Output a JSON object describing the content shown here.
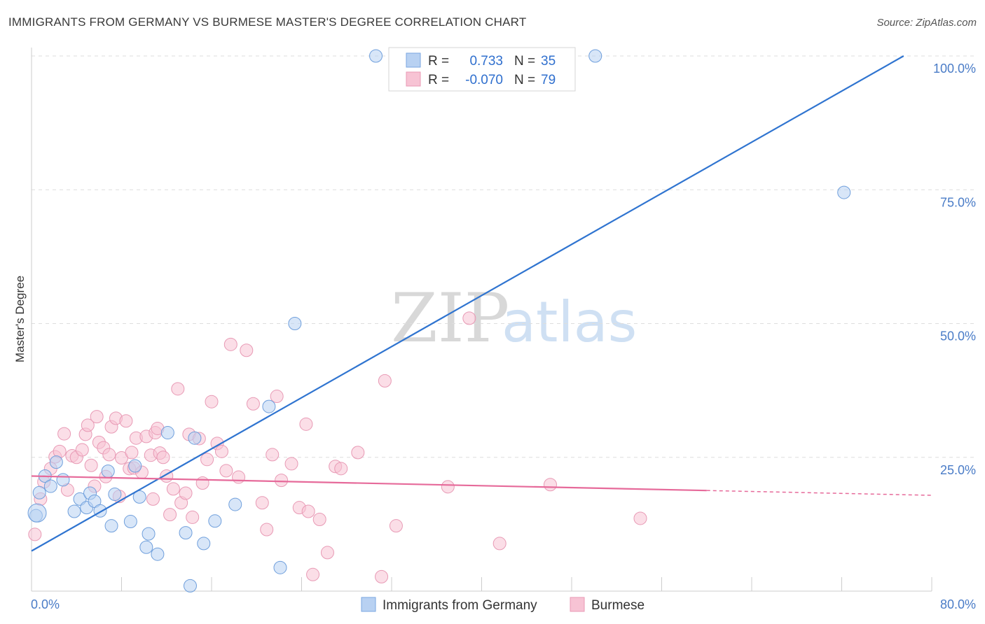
{
  "header": {
    "title": "IMMIGRANTS FROM GERMANY VS BURMESE MASTER'S DEGREE CORRELATION CHART",
    "source": "Source: ZipAtlas.com"
  },
  "watermark": {
    "part1": "ZIP",
    "part2": "atlas"
  },
  "colors": {
    "blue": "#2f74d0",
    "pink": "#e66a9a",
    "blue_fill": "#b8d1f2",
    "pink_fill": "#f7c3d4"
  },
  "legend": {
    "rows": [
      {
        "r_label": "R =",
        "r_value": "0.733",
        "n_label": "N =",
        "n_value": "35"
      },
      {
        "r_label": "R =",
        "r_value": "-0.070",
        "n_label": "N =",
        "n_value": "79"
      }
    ]
  },
  "bottom_legend": {
    "series1": "Immigrants from Germany",
    "series2": "Burmese"
  },
  "chart_data": {
    "type": "scatter",
    "title": "IMMIGRANTS FROM GERMANY VS BURMESE MASTER'S DEGREE CORRELATION CHART",
    "xlabel": "",
    "ylabel": "Master's Degree",
    "xlim": [
      0,
      80
    ],
    "ylim": [
      0,
      100
    ],
    "x_tick_labels": [
      "0.0%",
      "80.0%"
    ],
    "y_tick_labels": [
      "25.0%",
      "50.0%",
      "75.0%",
      "100.0%"
    ],
    "y_tick_values": [
      25,
      50,
      75,
      100
    ],
    "series": [
      {
        "name": "Immigrants from Germany",
        "r": 0.733,
        "n": 35,
        "trend": {
          "x": [
            0,
            77.5
          ],
          "y": [
            7.5,
            100
          ]
        },
        "points": [
          [
            0.4,
            14.1
          ],
          [
            0.7,
            18.4
          ],
          [
            1.2,
            21.5
          ],
          [
            1.7,
            19.6
          ],
          [
            2.2,
            24.1
          ],
          [
            2.8,
            20.8
          ],
          [
            3.8,
            14.9
          ],
          [
            4.3,
            17.2
          ],
          [
            4.9,
            15.6
          ],
          [
            5.2,
            18.3
          ],
          [
            5.6,
            16.8
          ],
          [
            6.1,
            15.0
          ],
          [
            6.8,
            22.4
          ],
          [
            7.1,
            12.2
          ],
          [
            7.4,
            18.1
          ],
          [
            8.8,
            13.0
          ],
          [
            9.2,
            23.4
          ],
          [
            9.6,
            17.6
          ],
          [
            10.2,
            8.2
          ],
          [
            10.4,
            10.7
          ],
          [
            11.2,
            6.9
          ],
          [
            12.1,
            29.6
          ],
          [
            13.7,
            10.9
          ],
          [
            14.1,
            1.0
          ],
          [
            14.5,
            28.6
          ],
          [
            15.3,
            8.9
          ],
          [
            16.3,
            13.1
          ],
          [
            18.1,
            16.2
          ],
          [
            21.1,
            34.5
          ],
          [
            22.1,
            4.4
          ],
          [
            23.4,
            50.0
          ],
          [
            30.6,
            100.0
          ],
          [
            50.1,
            100.0
          ],
          [
            72.2,
            74.5
          ],
          [
            0.5,
            14.6
          ]
        ]
      },
      {
        "name": "Burmese",
        "r": -0.07,
        "n": 79,
        "trend": {
          "x": [
            0,
            60
          ],
          "y": [
            21.5,
            18.8
          ]
        },
        "trend_dashed": {
          "x": [
            60,
            80
          ],
          "y": [
            18.8,
            17.9
          ]
        },
        "points": [
          [
            0.3,
            10.6
          ],
          [
            0.8,
            17.2
          ],
          [
            1.1,
            20.4
          ],
          [
            1.7,
            22.9
          ],
          [
            2.1,
            25.1
          ],
          [
            2.5,
            26.1
          ],
          [
            2.9,
            29.4
          ],
          [
            3.2,
            18.9
          ],
          [
            3.6,
            25.3
          ],
          [
            4.0,
            25.0
          ],
          [
            4.5,
            26.4
          ],
          [
            4.8,
            29.3
          ],
          [
            5.0,
            31.0
          ],
          [
            5.3,
            23.5
          ],
          [
            5.6,
            19.6
          ],
          [
            6.0,
            27.8
          ],
          [
            6.4,
            26.8
          ],
          [
            6.6,
            21.4
          ],
          [
            6.9,
            25.5
          ],
          [
            7.1,
            30.7
          ],
          [
            7.5,
            32.3
          ],
          [
            7.8,
            17.7
          ],
          [
            8.0,
            24.9
          ],
          [
            8.4,
            31.8
          ],
          [
            8.7,
            22.9
          ],
          [
            8.9,
            25.9
          ],
          [
            9.1,
            23.0
          ],
          [
            9.3,
            28.6
          ],
          [
            9.8,
            22.2
          ],
          [
            10.2,
            28.9
          ],
          [
            10.6,
            25.4
          ],
          [
            10.8,
            17.2
          ],
          [
            11.0,
            29.6
          ],
          [
            11.2,
            30.4
          ],
          [
            11.4,
            25.8
          ],
          [
            11.7,
            25.0
          ],
          [
            12.0,
            21.5
          ],
          [
            12.3,
            14.3
          ],
          [
            12.6,
            19.1
          ],
          [
            13.0,
            37.8
          ],
          [
            13.3,
            16.5
          ],
          [
            13.7,
            18.3
          ],
          [
            14.0,
            29.3
          ],
          [
            14.3,
            13.8
          ],
          [
            14.9,
            28.5
          ],
          [
            15.2,
            20.2
          ],
          [
            15.6,
            24.6
          ],
          [
            16.0,
            35.4
          ],
          [
            16.5,
            27.6
          ],
          [
            16.9,
            26.1
          ],
          [
            17.3,
            22.5
          ],
          [
            17.7,
            46.1
          ],
          [
            18.4,
            21.3
          ],
          [
            19.1,
            45.0
          ],
          [
            19.7,
            35.0
          ],
          [
            20.5,
            16.5
          ],
          [
            20.9,
            11.5
          ],
          [
            21.4,
            25.5
          ],
          [
            21.8,
            36.4
          ],
          [
            22.2,
            20.7
          ],
          [
            23.1,
            23.8
          ],
          [
            23.8,
            15.6
          ],
          [
            24.4,
            31.2
          ],
          [
            24.6,
            14.9
          ],
          [
            25.0,
            3.1
          ],
          [
            25.6,
            13.4
          ],
          [
            26.3,
            7.2
          ],
          [
            27.0,
            23.3
          ],
          [
            27.5,
            22.9
          ],
          [
            29.0,
            25.9
          ],
          [
            31.1,
            2.7
          ],
          [
            31.4,
            39.3
          ],
          [
            32.4,
            12.2
          ],
          [
            37.0,
            19.5
          ],
          [
            38.9,
            51.0
          ],
          [
            41.6,
            8.9
          ],
          [
            46.1,
            19.9
          ],
          [
            54.1,
            13.6
          ],
          [
            5.8,
            32.6
          ]
        ]
      }
    ]
  }
}
